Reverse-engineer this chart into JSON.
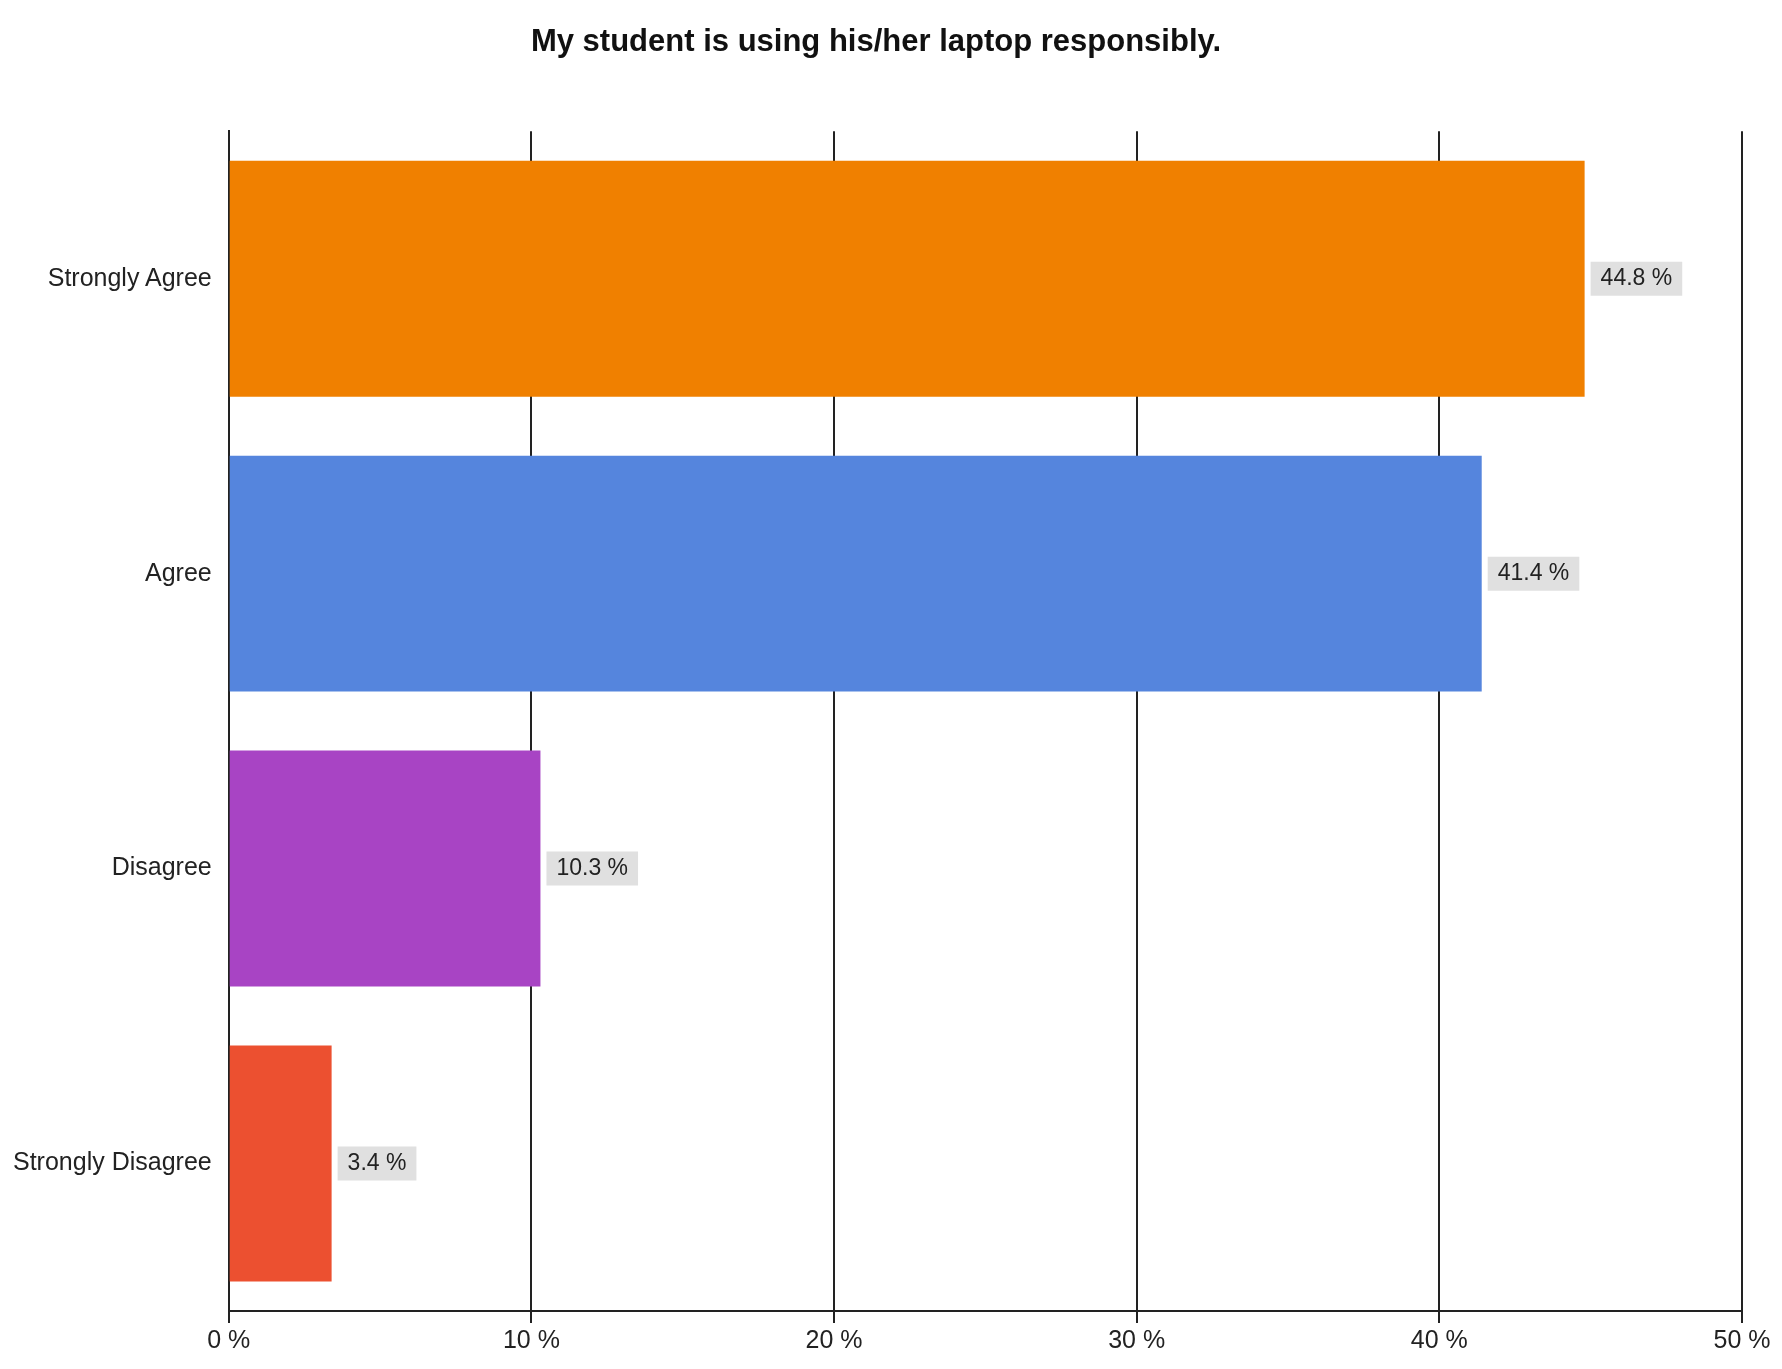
{
  "chart_data": {
    "type": "bar",
    "orientation": "horizontal",
    "title": "My student is using his/her laptop responsibly.",
    "categories": [
      "Strongly Agree",
      "Agree",
      "Disagree",
      "Strongly Disagree"
    ],
    "values": [
      44.8,
      41.4,
      10.3,
      3.4
    ],
    "colors": [
      "#f08000",
      "#5585dd",
      "#a844c4",
      "#ec5030"
    ],
    "value_labels": [
      "44.8 %",
      "41.4 %",
      "10.3 %",
      "3.4 %"
    ],
    "xlim": [
      0,
      50
    ],
    "xticks": [
      {
        "value": 0,
        "label": "0 %"
      },
      {
        "value": 10,
        "label": "10 %"
      },
      {
        "value": 20,
        "label": "20 %"
      },
      {
        "value": 30,
        "label": "30 %"
      },
      {
        "value": 40,
        "label": "40 %"
      },
      {
        "value": 50,
        "label": "50 %"
      }
    ],
    "grid": "x",
    "legend": false
  }
}
